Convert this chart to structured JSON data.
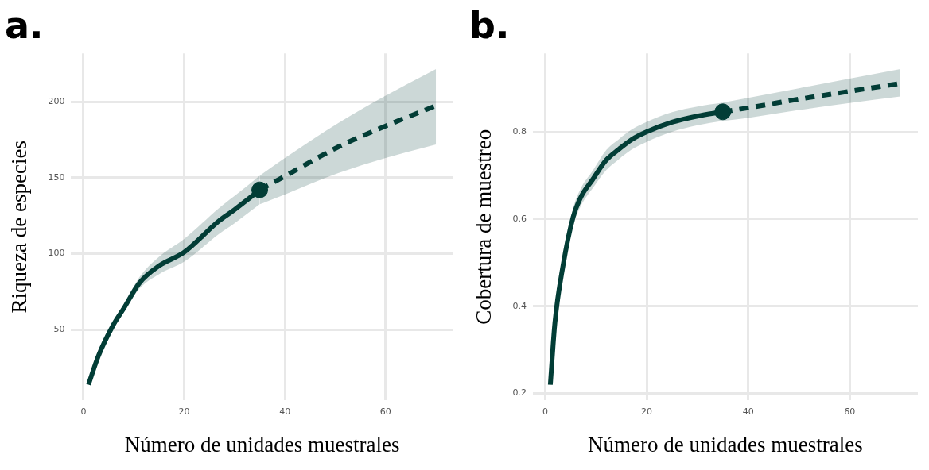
{
  "chart_data": [
    {
      "type": "line",
      "title": "a.",
      "xlabel": "Número de unidades muestrales",
      "ylabel": "Riqueza de especies",
      "xlim": [
        -2.45,
        73.45
      ],
      "ylim": [
        3.5,
        231.8
      ],
      "xticks": [
        0,
        20,
        40,
        60
      ],
      "yticks": [
        50,
        100,
        150,
        200
      ],
      "grid": true,
      "series": [
        {
          "type": "line",
          "color": "#023d36",
          "line_style": "solid",
          "marker": "none",
          "x": [
            1,
            3,
            5.8,
            8,
            11.1,
            15,
            20,
            26.9,
            30,
            35
          ],
          "values": [
            13.9,
            33,
            52.4,
            64,
            80.7,
            92,
            101,
            121.6,
            129,
            142
          ],
          "lower": [
            13.9,
            32,
            50.5,
            61.5,
            77,
            86.5,
            94.8,
            113,
            120,
            132.5
          ],
          "upper": [
            13.9,
            34,
            54.5,
            66.5,
            84.5,
            98,
            109.7,
            130,
            138,
            151.4
          ]
        },
        {
          "type": "line",
          "color": "#023d36",
          "line_style": "dashed",
          "marker": "none",
          "x": [
            35,
            40,
            50.6,
            60,
            70
          ],
          "values": [
            142,
            151,
            170.3,
            184,
            197.4
          ],
          "lower": [
            132.5,
            139,
            153,
            163,
            171.9
          ],
          "upper": [
            151.4,
            163,
            186,
            204,
            221.4
          ]
        },
        {
          "type": "scatter",
          "color": "#023d36",
          "marker": "circle",
          "x": [
            35
          ],
          "values": [
            142
          ]
        }
      ]
    },
    {
      "type": "line",
      "title": "b.",
      "xlabel": "Número de unidades muestrales",
      "ylabel": "Cobertura de muestreo",
      "xlim": [
        -2.45,
        73.45
      ],
      "ylim": [
        0.184,
        0.98
      ],
      "xticks": [
        0,
        20,
        40,
        60
      ],
      "yticks": [
        0.2,
        0.4,
        0.6,
        0.8
      ],
      "grid": true,
      "series": [
        {
          "type": "line",
          "color": "#023d36",
          "line_style": "solid",
          "marker": "none",
          "x": [
            1,
            1.9,
            3.5,
            5.5,
            7,
            9.3,
            12,
            14.5,
            17,
            20,
            25,
            30,
            35
          ],
          "values": [
            0.22,
            0.362,
            0.493,
            0.605,
            0.65,
            0.69,
            0.735,
            0.76,
            0.782,
            0.8,
            0.822,
            0.836,
            0.846
          ],
          "lower": [
            0.22,
            0.355,
            0.48,
            0.585,
            0.63,
            0.67,
            0.712,
            0.737,
            0.759,
            0.777,
            0.8,
            0.815,
            0.825
          ],
          "upper": [
            0.22,
            0.37,
            0.505,
            0.625,
            0.67,
            0.71,
            0.758,
            0.783,
            0.805,
            0.823,
            0.845,
            0.858,
            0.867
          ]
        },
        {
          "type": "line",
          "color": "#023d36",
          "line_style": "dashed",
          "marker": "none",
          "x": [
            35,
            40,
            50,
            60,
            70
          ],
          "values": [
            0.846,
            0.855,
            0.875,
            0.893,
            0.911
          ],
          "lower": [
            0.825,
            0.832,
            0.85,
            0.866,
            0.881
          ],
          "upper": [
            0.867,
            0.878,
            0.9,
            0.922,
            0.944
          ]
        },
        {
          "type": "scatter",
          "color": "#023d36",
          "marker": "circle",
          "x": [
            35
          ],
          "values": [
            0.846
          ]
        }
      ]
    }
  ]
}
